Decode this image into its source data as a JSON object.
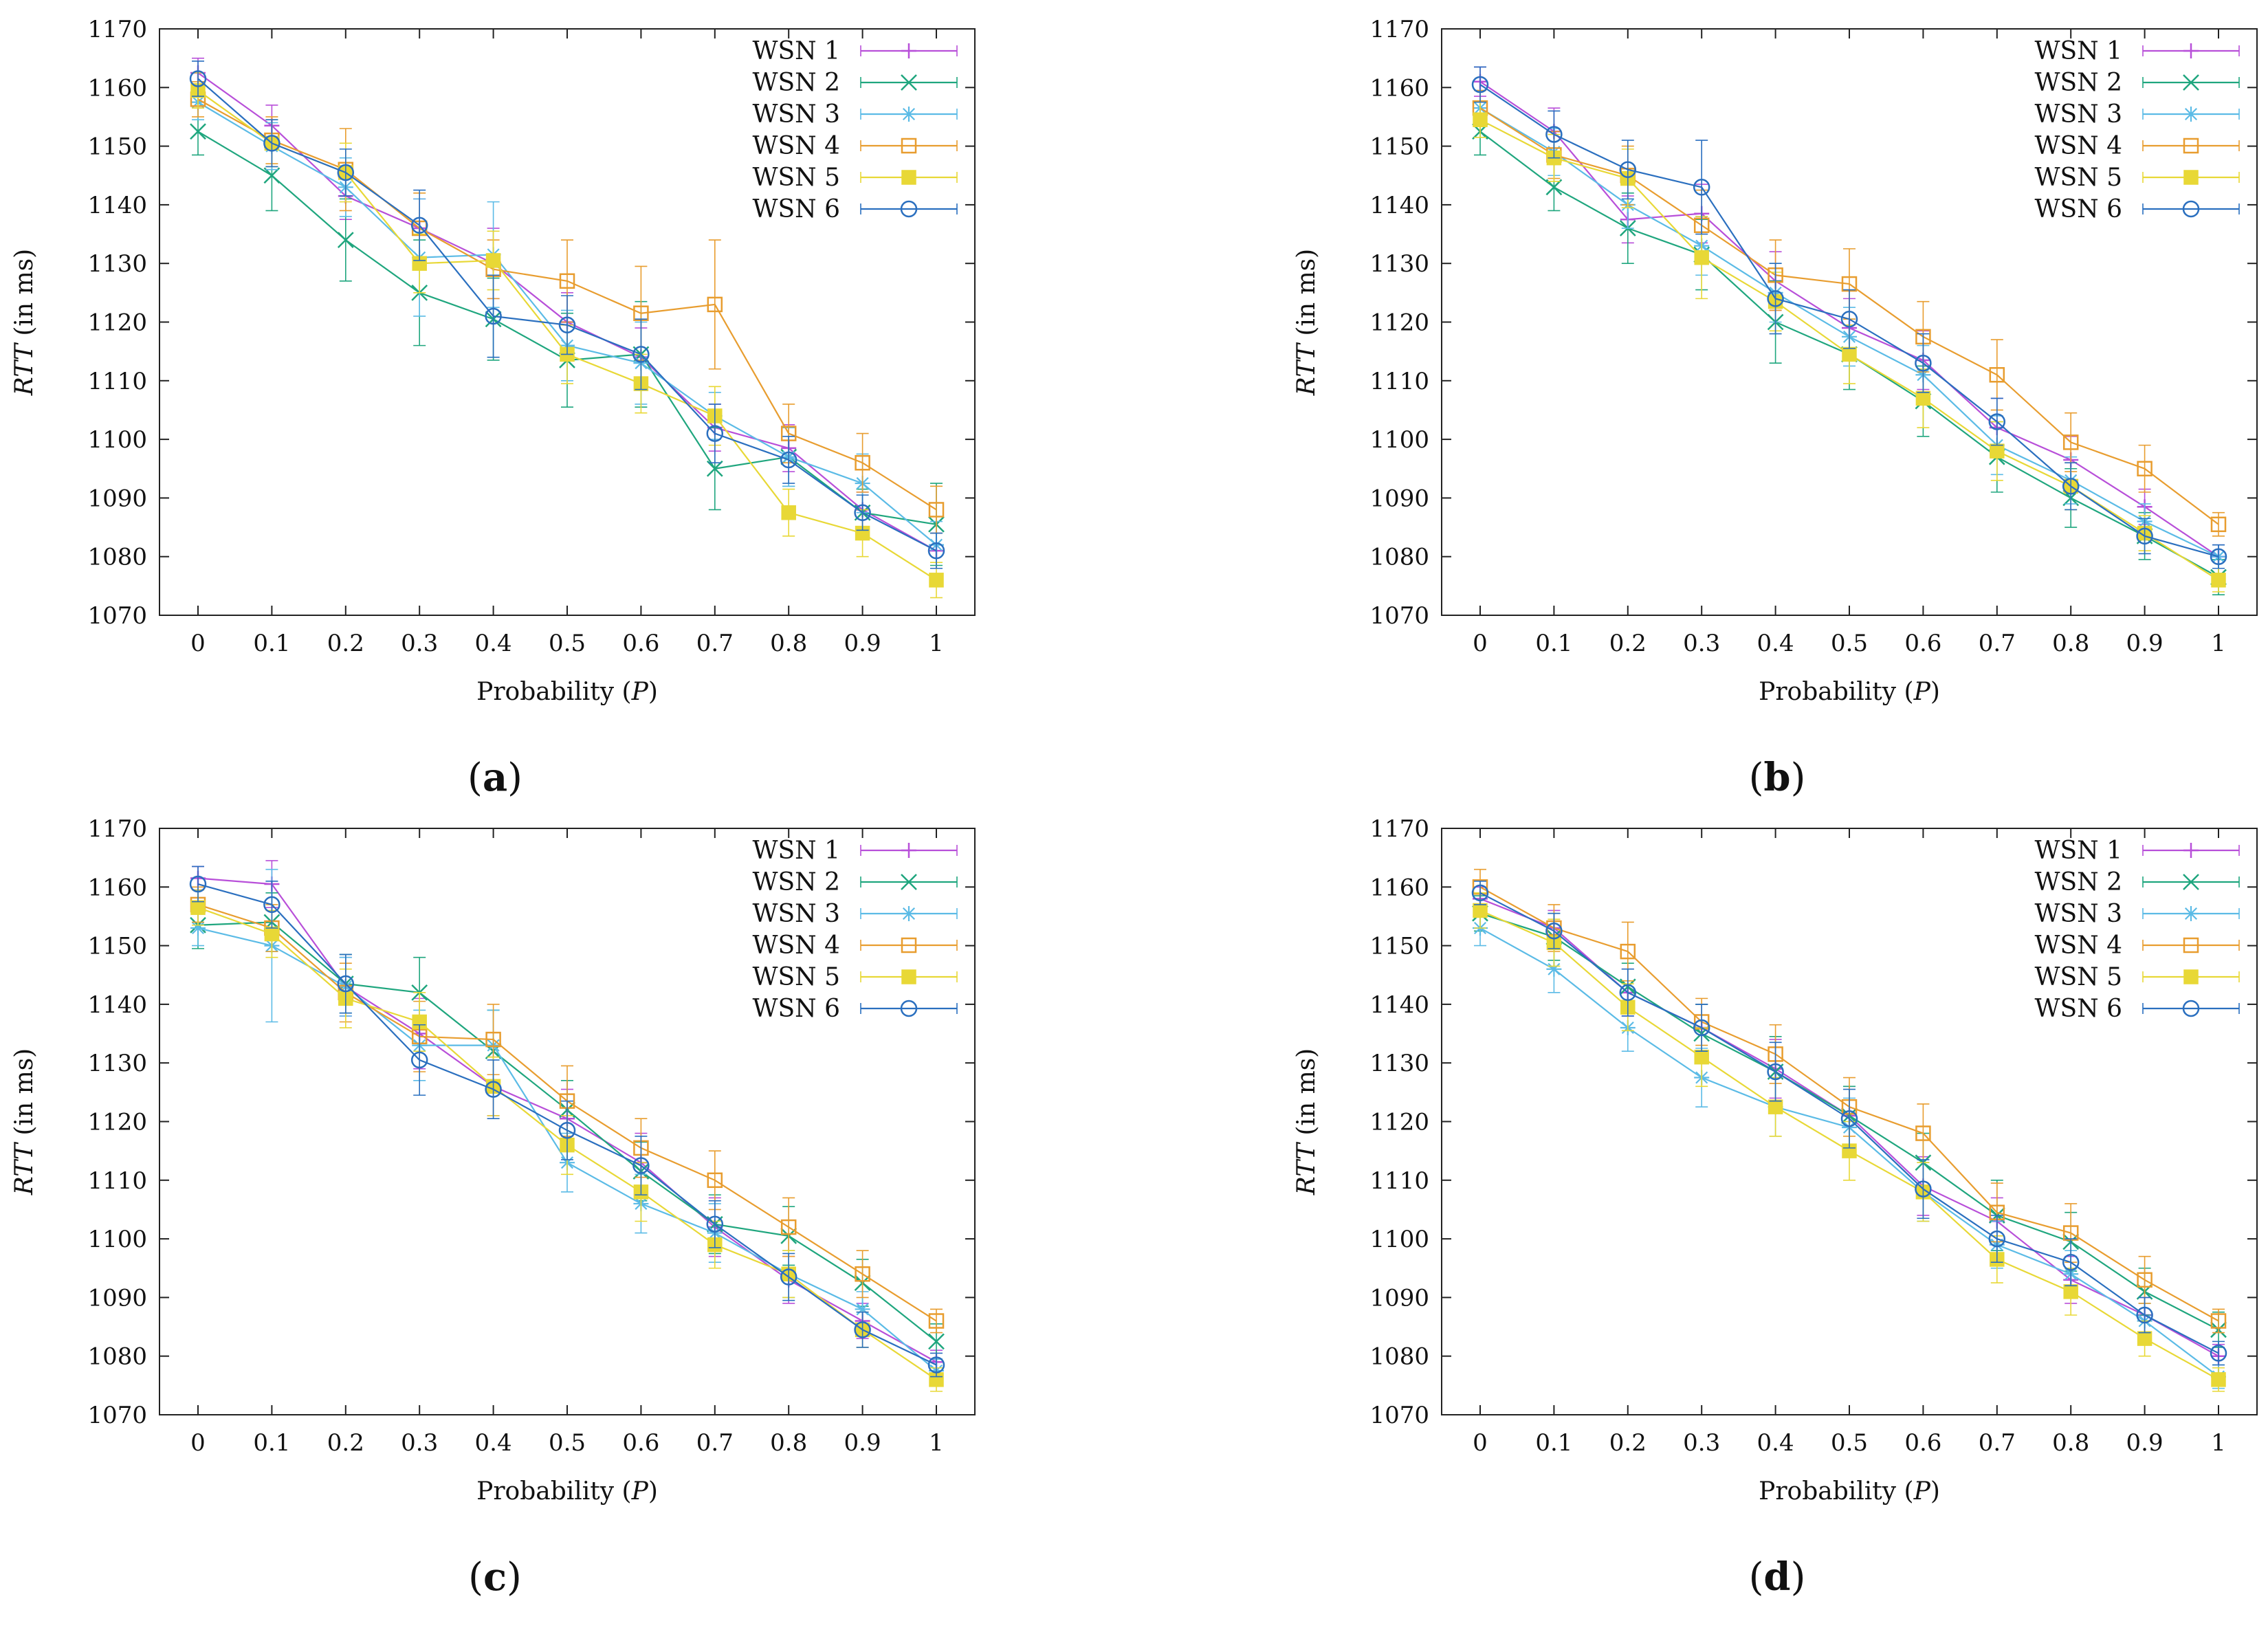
{
  "figure": {
    "captions": [
      "(a)",
      "(b)",
      "(c)",
      "(d)"
    ],
    "caption_letters": [
      "a",
      "b",
      "c",
      "d"
    ]
  },
  "colors": {
    "WSN 1": "#b84fd9",
    "WSN 2": "#1fa67e",
    "WSN 3": "#5bbbe6",
    "WSN 4": "#e89d2f",
    "WSN 5": "#e8d836",
    "WSN 6": "#2a6fbf"
  },
  "chart_data": [
    {
      "type": "line",
      "panel": "a",
      "xlabel": "Probability (P)",
      "xlabel_prefix": "Probability (",
      "xlabel_var": "P",
      "xlabel_suffix": ")",
      "ylabel": "RTT (in ms)",
      "ylabel_var": "RTT",
      "ylabel_suffix": " (in ms)",
      "x": [
        0,
        0.1,
        0.2,
        0.3,
        0.4,
        0.5,
        0.6,
        0.7,
        0.8,
        0.9,
        1
      ],
      "x_tick_labels": [
        "0",
        "0.1",
        "0.2",
        "0.3",
        "0.4",
        "0.5",
        "0.6",
        "0.7",
        "0.8",
        "0.9",
        "1"
      ],
      "ylim": [
        1070,
        1170
      ],
      "y_ticks": [
        1070,
        1080,
        1090,
        1100,
        1110,
        1120,
        1130,
        1140,
        1150,
        1160,
        1170
      ],
      "legend_position": "top-right",
      "series": [
        {
          "name": "WSN 1",
          "values": [
            1162.5,
            1153.5,
            1141.5,
            1136,
            1130,
            1120,
            1114,
            1102,
            1098.5,
            1088,
            1081
          ],
          "errors": [
            2.5,
            3.5,
            4,
            5,
            6,
            5,
            5,
            4,
            4,
            3,
            3
          ]
        },
        {
          "name": "WSN 2",
          "values": [
            1152.5,
            1145,
            1134,
            1125,
            1120.5,
            1113.5,
            1114.5,
            1095,
            1097,
            1087.5,
            1085.5
          ],
          "errors": [
            4,
            6,
            7,
            9,
            7,
            8,
            9,
            7,
            5,
            4,
            7
          ]
        },
        {
          "name": "WSN 3",
          "values": [
            1157.5,
            1150,
            1143,
            1131,
            1131.5,
            1116,
            1113,
            1104,
            1097,
            1092.5,
            1082
          ],
          "errors": [
            3,
            4,
            5,
            10,
            9,
            6,
            7,
            4,
            5,
            5,
            4
          ]
        },
        {
          "name": "WSN 4",
          "values": [
            1158,
            1151,
            1146,
            1136,
            1129,
            1127,
            1121.5,
            1123,
            1101,
            1096,
            1088
          ],
          "errors": [
            3,
            4,
            7,
            6,
            5,
            7,
            8,
            11,
            5,
            5,
            4
          ]
        },
        {
          "name": "WSN 5",
          "values": [
            1159.5,
            1150.5,
            1145.5,
            1130,
            1130.5,
            1114.5,
            1109.5,
            1104,
            1087.5,
            1084,
            1076
          ],
          "errors": [
            3,
            4,
            5,
            5,
            5,
            5,
            5,
            5,
            4,
            4,
            3
          ]
        },
        {
          "name": "WSN 6",
          "values": [
            1161.5,
            1150.5,
            1145.5,
            1136.5,
            1121,
            1119.5,
            1114.5,
            1101,
            1096.5,
            1087.5,
            1081
          ],
          "errors": [
            3,
            4,
            4,
            6,
            7,
            5,
            6,
            5,
            4,
            3,
            3
          ]
        }
      ]
    },
    {
      "type": "line",
      "panel": "b",
      "xlabel": "Probability (P)",
      "xlabel_prefix": "Probability (",
      "xlabel_var": "P",
      "xlabel_suffix": ")",
      "ylabel": "RTT (in ms)",
      "ylabel_var": "RTT",
      "ylabel_suffix": " (in ms)",
      "x": [
        0,
        0.1,
        0.2,
        0.3,
        0.4,
        0.5,
        0.6,
        0.7,
        0.8,
        0.9,
        1
      ],
      "x_tick_labels": [
        "0",
        "0.1",
        "0.2",
        "0.3",
        "0.4",
        "0.5",
        "0.6",
        "0.7",
        "0.8",
        "0.9",
        "1"
      ],
      "ylim": [
        1070,
        1170
      ],
      "y_ticks": [
        1070,
        1080,
        1090,
        1100,
        1110,
        1120,
        1130,
        1140,
        1150,
        1160,
        1170
      ],
      "legend_position": "top-right",
      "series": [
        {
          "name": "WSN 1",
          "values": [
            1161,
            1152.5,
            1137.5,
            1138.5,
            1127,
            1119,
            1113.5,
            1102,
            1096.5,
            1088.5,
            1080
          ],
          "errors": [
            2.5,
            4,
            4,
            5,
            5,
            5,
            5,
            5,
            4,
            3,
            2
          ]
        },
        {
          "name": "WSN 2",
          "values": [
            1152.5,
            1143,
            1136,
            1131.5,
            1120,
            1114.5,
            1106.5,
            1097,
            1090,
            1083.5,
            1076.5
          ],
          "errors": [
            4,
            4,
            6,
            6,
            7,
            6,
            6,
            6,
            5,
            4,
            3
          ]
        },
        {
          "name": "WSN 3",
          "values": [
            1156.5,
            1149,
            1140,
            1133,
            1125,
            1117.5,
            1111,
            1099,
            1093,
            1086,
            1080
          ],
          "errors": [
            3,
            4,
            4,
            5,
            5,
            5,
            5,
            5,
            4,
            3,
            2
          ]
        },
        {
          "name": "WSN 4",
          "values": [
            1156.5,
            1148.5,
            1145,
            1136.5,
            1128,
            1126.5,
            1117.5,
            1111,
            1099.5,
            1095,
            1085.5
          ],
          "errors": [
            3,
            4,
            5,
            6,
            6,
            6,
            6,
            6,
            5,
            4,
            2
          ]
        },
        {
          "name": "WSN 5",
          "values": [
            1154.5,
            1148,
            1144.5,
            1131,
            1123.5,
            1114.5,
            1107,
            1098,
            1092,
            1084,
            1076
          ],
          "errors": [
            3,
            4,
            5,
            7,
            5,
            5,
            5,
            5,
            4,
            3,
            2
          ]
        },
        {
          "name": "WSN 6",
          "values": [
            1160.5,
            1152,
            1146,
            1143,
            1124,
            1120.5,
            1113,
            1103,
            1092,
            1083.5,
            1080
          ],
          "errors": [
            3,
            4,
            5,
            8,
            6,
            5,
            5,
            4,
            4,
            3,
            2
          ]
        }
      ]
    },
    {
      "type": "line",
      "panel": "c",
      "xlabel": "Probability (P)",
      "xlabel_prefix": "Probability (",
      "xlabel_var": "P",
      "xlabel_suffix": ")",
      "ylabel": "RTT (in ms)",
      "ylabel_var": "RTT",
      "ylabel_suffix": " (in ms)",
      "x": [
        0,
        0.1,
        0.2,
        0.3,
        0.4,
        0.5,
        0.6,
        0.7,
        0.8,
        0.9,
        1
      ],
      "x_tick_labels": [
        "0",
        "0.1",
        "0.2",
        "0.3",
        "0.4",
        "0.5",
        "0.6",
        "0.7",
        "0.8",
        "0.9",
        "1"
      ],
      "ylim": [
        1070,
        1170
      ],
      "y_ticks": [
        1070,
        1080,
        1090,
        1100,
        1110,
        1120,
        1130,
        1140,
        1150,
        1160,
        1170
      ],
      "legend_position": "top-right",
      "series": [
        {
          "name": "WSN 1",
          "values": [
            1161.5,
            1160.5,
            1143,
            1135,
            1126,
            1120.5,
            1113,
            1102,
            1093,
            1086,
            1079
          ],
          "errors": [
            2,
            4,
            5,
            6,
            5,
            5,
            5,
            5,
            4,
            3,
            2
          ]
        },
        {
          "name": "WSN 2",
          "values": [
            1153.5,
            1154,
            1143.5,
            1142,
            1132,
            1122,
            1111.5,
            1102.5,
            1100.5,
            1092.5,
            1082.5
          ],
          "errors": [
            4,
            5,
            5,
            6,
            7,
            5,
            5,
            5,
            5,
            4,
            3
          ]
        },
        {
          "name": "WSN 3",
          "values": [
            1153,
            1150,
            1143,
            1133,
            1133,
            1113,
            1106,
            1101,
            1094,
            1088,
            1077.5
          ],
          "errors": [
            3,
            13,
            5,
            6,
            6,
            5,
            5,
            5,
            4,
            3,
            2
          ]
        },
        {
          "name": "WSN 4",
          "values": [
            1157,
            1153,
            1142,
            1134.5,
            1134,
            1123.5,
            1115.5,
            1110,
            1102,
            1094,
            1086
          ],
          "errors": [
            3,
            4,
            5,
            6,
            6,
            6,
            5,
            5,
            5,
            4,
            2
          ]
        },
        {
          "name": "WSN 5",
          "values": [
            1156.5,
            1152,
            1141,
            1137,
            1126,
            1116,
            1108,
            1099,
            1094,
            1084.5,
            1076
          ],
          "errors": [
            3,
            4,
            5,
            5,
            5,
            5,
            5,
            4,
            4,
            3,
            2
          ]
        },
        {
          "name": "WSN 6",
          "values": [
            1160.5,
            1157,
            1143.5,
            1130.5,
            1125.5,
            1118.5,
            1112.5,
            1102.5,
            1093.5,
            1084.5,
            1078.5
          ],
          "errors": [
            3,
            4,
            5,
            6,
            5,
            5,
            5,
            4,
            4,
            3,
            2
          ]
        }
      ]
    },
    {
      "type": "line",
      "panel": "d",
      "xlabel": "Probability (P)",
      "xlabel_prefix": "Probability (",
      "xlabel_var": "P",
      "xlabel_suffix": ")",
      "ylabel": "RTT (in ms)",
      "ylabel_var": "RTT",
      "ylabel_suffix": " (in ms)",
      "x": [
        0,
        0.1,
        0.2,
        0.3,
        0.4,
        0.5,
        0.6,
        0.7,
        0.8,
        0.9,
        1
      ],
      "x_tick_labels": [
        "0",
        "0.1",
        "0.2",
        "0.3",
        "0.4",
        "0.5",
        "0.6",
        "0.7",
        "0.8",
        "0.9",
        "1"
      ],
      "ylim": [
        1070,
        1170
      ],
      "y_ticks": [
        1070,
        1080,
        1090,
        1100,
        1110,
        1120,
        1130,
        1140,
        1150,
        1160,
        1170
      ],
      "legend_position": "top-right",
      "series": [
        {
          "name": "WSN 1",
          "values": [
            1158,
            1153,
            1142,
            1136,
            1129,
            1121,
            1109,
            1103,
            1093,
            1087,
            1080
          ],
          "errors": [
            2,
            3,
            4,
            4,
            5,
            5,
            5,
            4,
            4,
            3,
            2
          ]
        },
        {
          "name": "WSN 2",
          "values": [
            1155.5,
            1151.5,
            1143,
            1135,
            1128.5,
            1121,
            1113,
            1104,
            1099.5,
            1091,
            1084.5
          ],
          "errors": [
            3,
            4,
            4,
            5,
            6,
            5,
            5,
            6,
            5,
            4,
            3
          ]
        },
        {
          "name": "WSN 3",
          "values": [
            1153,
            1146,
            1136,
            1127.5,
            1122.5,
            1119,
            1108,
            1099,
            1094,
            1086,
            1076.5
          ],
          "errors": [
            3,
            4,
            4,
            5,
            5,
            5,
            5,
            4,
            4,
            3,
            2
          ]
        },
        {
          "name": "WSN 4",
          "values": [
            1160,
            1153,
            1149,
            1137,
            1131.5,
            1122.5,
            1118,
            1104.5,
            1101,
            1093,
            1086
          ],
          "errors": [
            3,
            4,
            5,
            4,
            5,
            5,
            5,
            5,
            5,
            4,
            2
          ]
        },
        {
          "name": "WSN 5",
          "values": [
            1156,
            1150.5,
            1139.5,
            1131,
            1122.5,
            1115,
            1108,
            1096.5,
            1091,
            1083,
            1076
          ],
          "errors": [
            3,
            4,
            4,
            5,
            5,
            5,
            5,
            4,
            4,
            3,
            2
          ]
        },
        {
          "name": "WSN 6",
          "values": [
            1159,
            1152.5,
            1142,
            1136,
            1128.5,
            1120.5,
            1108.5,
            1100,
            1096,
            1087,
            1080.5
          ],
          "errors": [
            2,
            3,
            4,
            4,
            5,
            5,
            5,
            4,
            4,
            3,
            2
          ]
        }
      ]
    }
  ]
}
